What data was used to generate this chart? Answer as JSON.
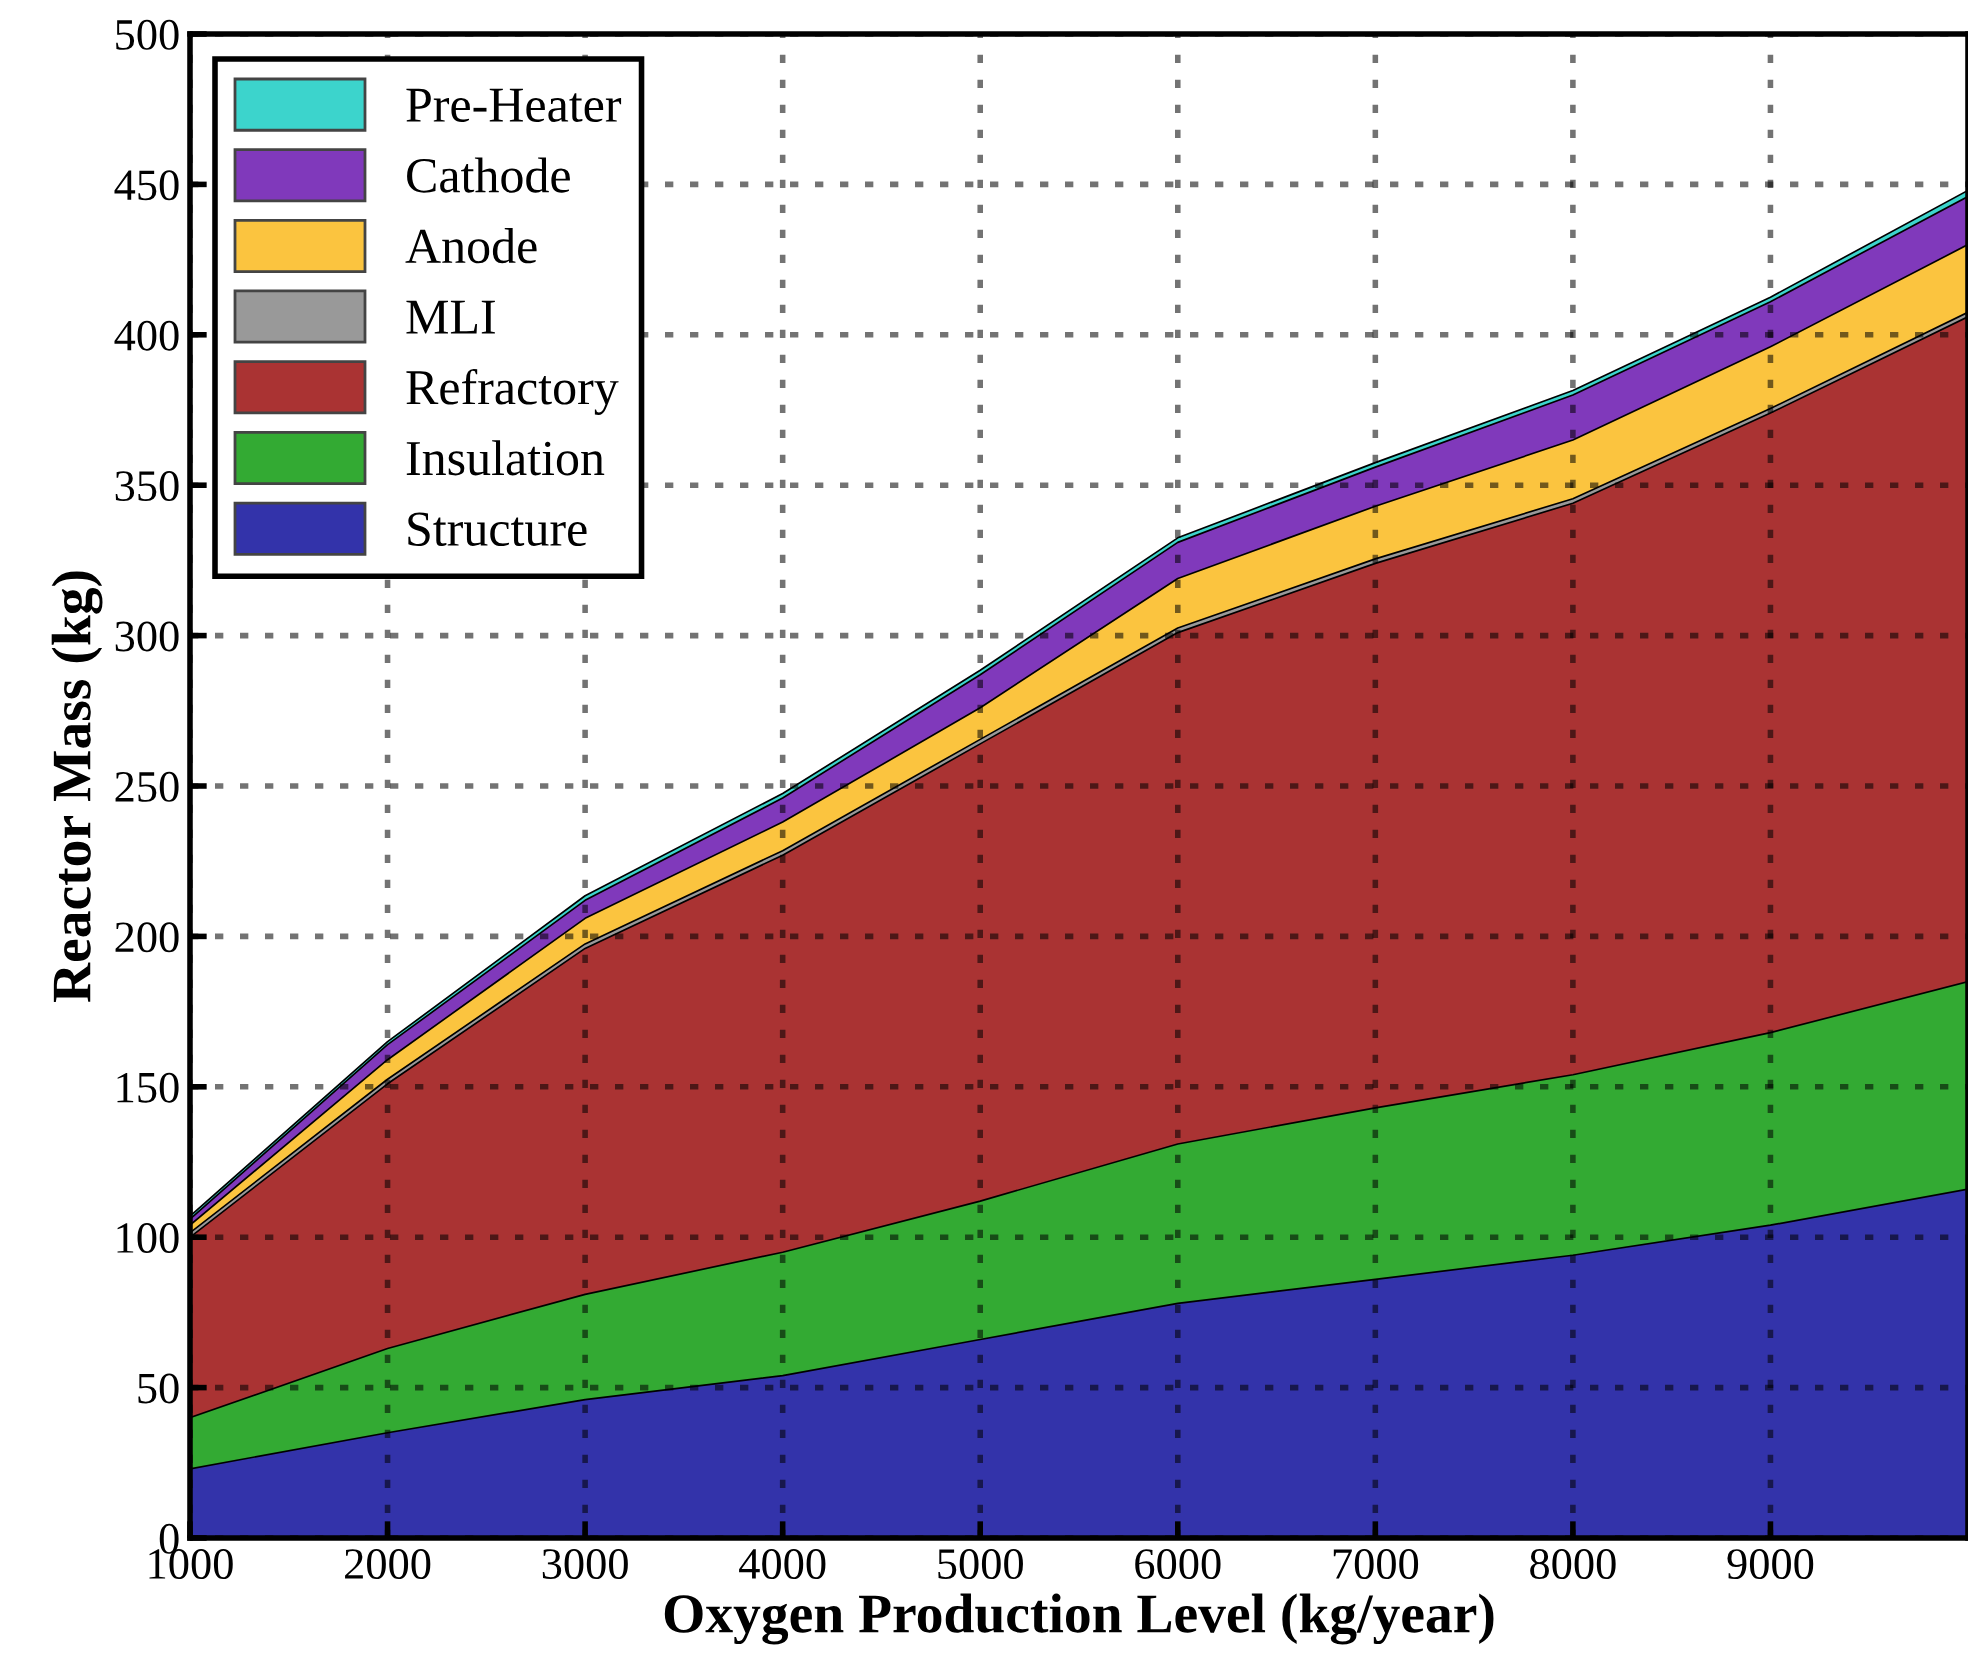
{
  "chart_data": {
    "type": "area",
    "stacked": true,
    "xlabel": "Oxygen Production Level (kg/year)",
    "ylabel": "Reactor Mass (kg)",
    "x": [
      1000,
      2000,
      3000,
      4000,
      5000,
      6000,
      7000,
      8000,
      9000,
      10000
    ],
    "xlim": [
      1000,
      10000
    ],
    "xticks": [
      1000,
      2000,
      3000,
      4000,
      5000,
      6000,
      7000,
      8000,
      9000
    ],
    "ylim": [
      0,
      500
    ],
    "yticks": [
      0,
      50,
      100,
      150,
      200,
      250,
      300,
      350,
      400,
      450,
      500
    ],
    "grid": true,
    "legend": "top left",
    "series": [
      {
        "name": "Structure",
        "color": "#3333aa",
        "values": [
          23,
          35,
          46,
          54,
          66,
          78,
          86,
          94,
          104,
          116
        ]
      },
      {
        "name": "Insulation",
        "color": "#33aa33",
        "values": [
          17,
          28,
          35,
          41,
          46,
          53,
          57,
          60,
          64,
          69
        ]
      },
      {
        "name": "Refractory",
        "color": "#aa3333",
        "values": [
          60,
          88,
          115,
          132,
          152,
          170,
          181,
          190,
          206,
          221
        ]
      },
      {
        "name": "MLI",
        "color": "#999999",
        "values": [
          1.5,
          1.5,
          1.5,
          1.5,
          1.5,
          1.5,
          1.5,
          1.5,
          1.5,
          1.5
        ]
      },
      {
        "name": "Anode",
        "color": "#fbc43f",
        "values": [
          2.5,
          6.5,
          8.5,
          9.5,
          10.5,
          16.5,
          17.5,
          19.5,
          20.5,
          22.5
        ]
      },
      {
        "name": "Cathode",
        "color": "#8039bb",
        "values": [
          2,
          5,
          6,
          8,
          11,
          12,
          13,
          15,
          15,
          16
        ]
      },
      {
        "name": "Pre-Heater",
        "color": "#3cd4cc",
        "values": [
          1,
          1,
          1.5,
          1.5,
          1.5,
          1.5,
          1.5,
          1.5,
          1.5,
          2
        ]
      }
    ]
  }
}
